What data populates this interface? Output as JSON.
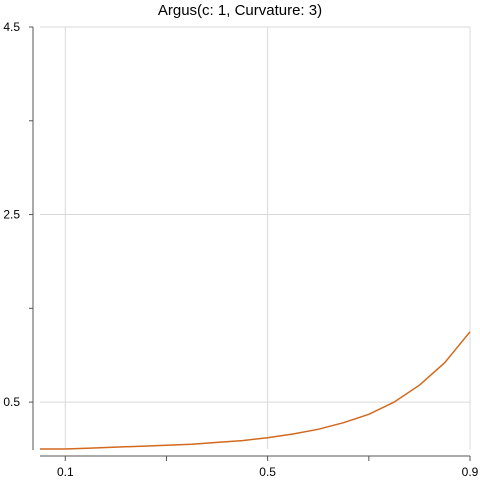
{
  "chart_data": {
    "type": "line",
    "title": "Argus(c: 1, Curvature: 3)",
    "xlabel": "",
    "ylabel": "",
    "xlim": [
      0.05,
      0.9
    ],
    "ylim": [
      0,
      4.5
    ],
    "x_ticks": [
      0.1,
      0.5,
      0.9
    ],
    "x_tick_labels": [
      "0.1",
      "0.5",
      "0.9"
    ],
    "x_minor_ticks": [
      0.3,
      0.7
    ],
    "y_ticks": [
      0.5,
      2.5,
      4.5
    ],
    "y_tick_labels": [
      "0.5",
      "2.5",
      "4.5"
    ],
    "y_minor_ticks": [
      1.5,
      3.5
    ],
    "grid": true,
    "series": [
      {
        "color": "#d2691e",
        "x": [
          0.05,
          0.1,
          0.15,
          0.2,
          0.25,
          0.3,
          0.35,
          0.4,
          0.45,
          0.5,
          0.55,
          0.6,
          0.65,
          0.7,
          0.75,
          0.8,
          0.85,
          0.9
        ],
        "y": [
          0.0,
          0.0,
          0.01,
          0.02,
          0.03,
          0.04,
          0.05,
          0.07,
          0.09,
          0.12,
          0.16,
          0.21,
          0.28,
          0.37,
          0.5,
          0.68,
          0.92,
          1.25
        ]
      }
    ]
  }
}
